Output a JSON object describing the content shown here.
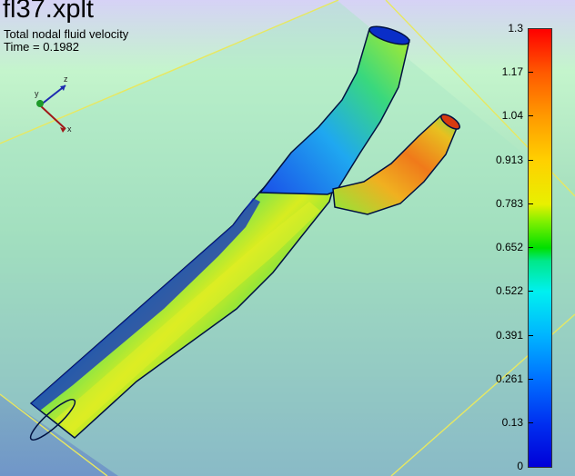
{
  "plot": {
    "title": "fl37.xplt",
    "subtitle": "Total nodal fluid velocity",
    "time_label": "Time = 0.1982"
  },
  "triad": {
    "labels": [
      "y",
      "z",
      "x"
    ]
  },
  "colorbar": {
    "labels": [
      "1.3",
      "1.17",
      "1.04",
      "0.913",
      "0.783",
      "0.652",
      "0.522",
      "0.391",
      "0.261",
      "0.13",
      "0"
    ],
    "max": 1.3,
    "min": 0
  },
  "colors": {
    "background_top": "#cfc9f4",
    "background_mid": "#b7f3c2",
    "background_bottom": "#6f99c4",
    "frame_line": "#e8e860",
    "vessel_outline": "#001040"
  }
}
